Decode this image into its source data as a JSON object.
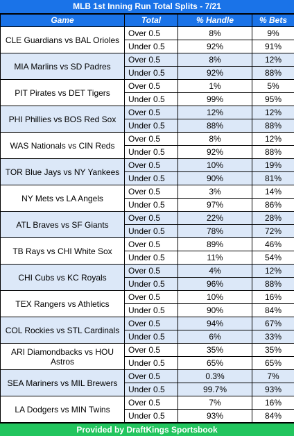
{
  "title": "MLB 1st Inning Run Total Splits - 7/21",
  "headers": {
    "game": "Game",
    "total": "Total",
    "handle": "% Handle",
    "bets": "% Bets"
  },
  "games": [
    {
      "name": "CLE Guardians vs BAL Orioles",
      "rows": [
        {
          "total": "Over 0.5",
          "handle": "8%",
          "bets": "9%"
        },
        {
          "total": "Under 0.5",
          "handle": "92%",
          "bets": "91%"
        }
      ]
    },
    {
      "name": "MIA Marlins vs SD Padres",
      "rows": [
        {
          "total": "Over 0.5",
          "handle": "8%",
          "bets": "12%"
        },
        {
          "total": "Under 0.5",
          "handle": "92%",
          "bets": "88%"
        }
      ]
    },
    {
      "name": "PIT Pirates vs DET Tigers",
      "rows": [
        {
          "total": "Over 0.5",
          "handle": "1%",
          "bets": "5%"
        },
        {
          "total": "Under 0.5",
          "handle": "99%",
          "bets": "95%"
        }
      ]
    },
    {
      "name": "PHI Phillies vs BOS Red Sox",
      "rows": [
        {
          "total": "Over 0.5",
          "handle": "12%",
          "bets": "12%"
        },
        {
          "total": "Under 0.5",
          "handle": "88%",
          "bets": "88%"
        }
      ]
    },
    {
      "name": "WAS Nationals vs CIN Reds",
      "rows": [
        {
          "total": "Over 0.5",
          "handle": "8%",
          "bets": "12%"
        },
        {
          "total": "Under 0.5",
          "handle": "92%",
          "bets": "88%"
        }
      ]
    },
    {
      "name": "TOR Blue Jays vs NY Yankees",
      "rows": [
        {
          "total": "Over 0.5",
          "handle": "10%",
          "bets": "19%"
        },
        {
          "total": "Under 0.5",
          "handle": "90%",
          "bets": "81%"
        }
      ]
    },
    {
      "name": "NY Mets vs LA Angels",
      "rows": [
        {
          "total": "Over 0.5",
          "handle": "3%",
          "bets": "14%"
        },
        {
          "total": "Under 0.5",
          "handle": "97%",
          "bets": "86%"
        }
      ]
    },
    {
      "name": "ATL Braves vs SF Giants",
      "rows": [
        {
          "total": "Over 0.5",
          "handle": "22%",
          "bets": "28%"
        },
        {
          "total": "Under 0.5",
          "handle": "78%",
          "bets": "72%"
        }
      ]
    },
    {
      "name": "TB Rays vs CHI White Sox",
      "rows": [
        {
          "total": "Over 0.5",
          "handle": "89%",
          "bets": "46%"
        },
        {
          "total": "Under 0.5",
          "handle": "11%",
          "bets": "54%"
        }
      ]
    },
    {
      "name": "CHI Cubs vs KC Royals",
      "rows": [
        {
          "total": "Over 0.5",
          "handle": "4%",
          "bets": "12%"
        },
        {
          "total": "Under 0.5",
          "handle": "96%",
          "bets": "88%"
        }
      ]
    },
    {
      "name": "TEX Rangers vs Athletics",
      "rows": [
        {
          "total": "Over 0.5",
          "handle": "10%",
          "bets": "16%"
        },
        {
          "total": "Under 0.5",
          "handle": "90%",
          "bets": "84%"
        }
      ]
    },
    {
      "name": "COL Rockies vs STL Cardinals",
      "rows": [
        {
          "total": "Over 0.5",
          "handle": "94%",
          "bets": "67%"
        },
        {
          "total": "Under 0.5",
          "handle": "6%",
          "bets": "33%"
        }
      ]
    },
    {
      "name": "ARI Diamondbacks vs HOU Astros",
      "rows": [
        {
          "total": "Over 0.5",
          "handle": "35%",
          "bets": "35%"
        },
        {
          "total": "Under 0.5",
          "handle": "65%",
          "bets": "65%"
        }
      ]
    },
    {
      "name": "SEA Mariners vs MIL Brewers",
      "rows": [
        {
          "total": "Over 0.5",
          "handle": "0.3%",
          "bets": "7%"
        },
        {
          "total": "Under 0.5",
          "handle": "99.7%",
          "bets": "93%"
        }
      ]
    },
    {
      "name": "LA Dodgers vs MIN Twins",
      "rows": [
        {
          "total": "Over 0.5",
          "handle": "7%",
          "bets": "16%"
        },
        {
          "total": "Under 0.5",
          "handle": "93%",
          "bets": "84%"
        }
      ]
    }
  ],
  "footer": "Provided by DraftKings Sportsbook",
  "colors": {
    "header_blue": "#1a73e8",
    "row_blue": "#dce8f8",
    "footer_green": "#22c55e"
  }
}
